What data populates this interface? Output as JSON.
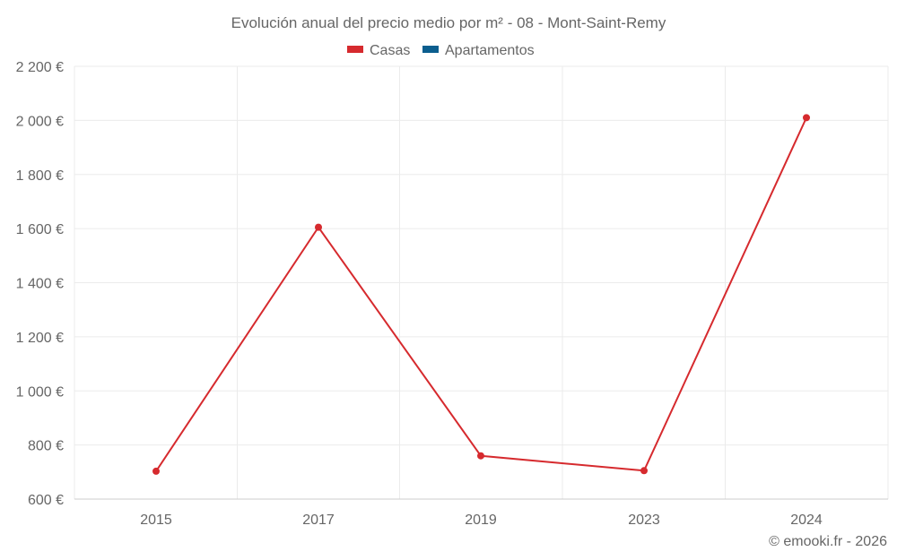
{
  "chart_data": {
    "type": "line",
    "title": "Evolución anual del precio medio por m² - 08 - Mont-Saint-Remy",
    "categories": [
      "2015",
      "2017",
      "2019",
      "2023",
      "2024"
    ],
    "series": [
      {
        "name": "Casas",
        "color": "#d62a2e",
        "values": [
          703,
          1605,
          760,
          705,
          2010
        ]
      },
      {
        "name": "Apartamentos",
        "color": "#0b5e8e",
        "values": [
          null,
          null,
          null,
          null,
          null
        ]
      }
    ],
    "y_ticks": [
      600,
      800,
      1000,
      1200,
      1400,
      1600,
      1800,
      2000,
      2200
    ],
    "y_tick_labels": [
      "600 €",
      "800 €",
      "1 000 €",
      "1 200 €",
      "1 400 €",
      "1 600 €",
      "1 800 €",
      "2 000 €",
      "2 200 €"
    ],
    "ylim": [
      600,
      2200
    ],
    "xlabel": "",
    "ylabel": "",
    "grid": true,
    "legend_position": "top-center"
  },
  "credit": "© emooki.fr - 2026"
}
